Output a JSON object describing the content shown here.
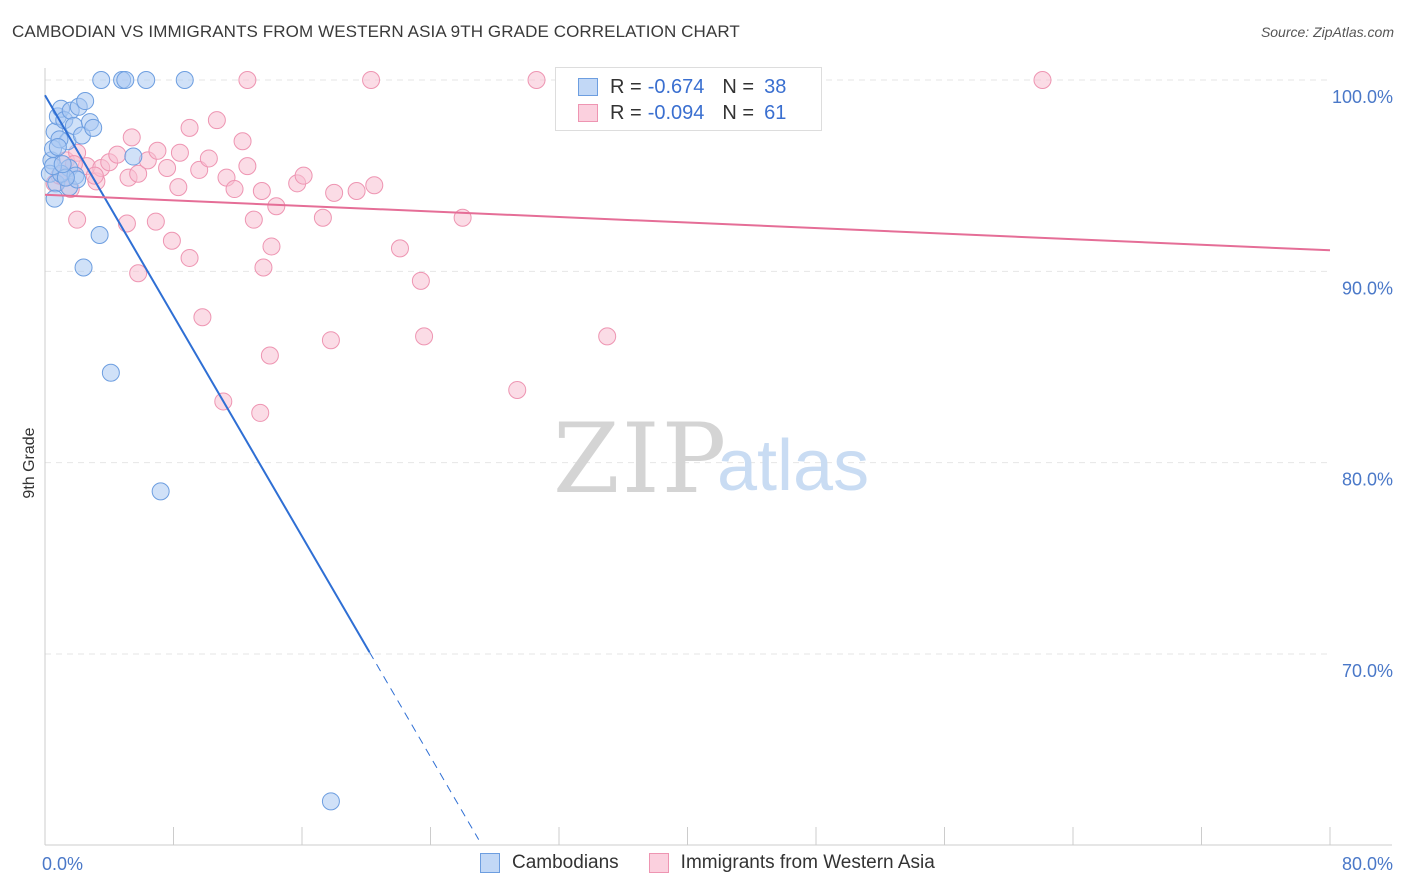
{
  "header": {
    "title": "CAMBODIAN VS IMMIGRANTS FROM WESTERN ASIA 9TH GRADE CORRELATION CHART",
    "source": "Source: ZipAtlas.com"
  },
  "watermark": {
    "zip": "ZIP",
    "atlas": "atlas"
  },
  "legend": {
    "series1": {
      "r_label": "R =",
      "r_value": "-0.674",
      "n_label": "N =",
      "n_value": "38"
    },
    "series2": {
      "r_label": "R =",
      "r_value": "-0.094",
      "n_label": "N =",
      "n_value": "61"
    }
  },
  "bottom_legend": {
    "item1": "Cambodians",
    "item2": "Immigrants from Western Asia"
  },
  "colors": {
    "blue_fill": "#a9c8f2",
    "blue_stroke": "#6d9ee0",
    "blue_line": "#2f6fd4",
    "pink_fill": "#f8c0d2",
    "pink_stroke": "#ee95b2",
    "pink_line": "#e56e97",
    "grid": "#e6e6e6",
    "axis_text": "#4a78c8"
  },
  "chart_data": {
    "type": "scatter",
    "title": "CAMBODIAN VS IMMIGRANTS FROM WESTERN ASIA 9TH GRADE CORRELATION CHART",
    "xlabel": "",
    "ylabel": "9th Grade",
    "xlim": [
      0,
      80
    ],
    "ylim": [
      60,
      101.5
    ],
    "x_tick_labels": [
      "0.0%",
      "80.0%"
    ],
    "y_ticks": [
      {
        "value": 100,
        "label": "100.0%"
      },
      {
        "value": 90,
        "label": "90.0%"
      },
      {
        "value": 80,
        "label": "80.0%"
      },
      {
        "value": 70,
        "label": "70.0%"
      }
    ],
    "series": [
      {
        "name": "Cambodians",
        "r": -0.674,
        "n": 38,
        "trend": {
          "x0": 0,
          "y0": 99.2,
          "x1": 20.2,
          "y1": 70.1,
          "dash_to_x": 27,
          "dash_to_y": 60.3
        },
        "points": [
          [
            0.4,
            95.8
          ],
          [
            0.5,
            96.4
          ],
          [
            0.6,
            97.3
          ],
          [
            0.8,
            98.1
          ],
          [
            1.0,
            98.5
          ],
          [
            1.2,
            97.9
          ],
          [
            0.3,
            95.1
          ],
          [
            0.7,
            94.6
          ],
          [
            1.4,
            96.8
          ],
          [
            1.5,
            95.4
          ],
          [
            1.6,
            98.4
          ],
          [
            1.8,
            97.6
          ],
          [
            2.1,
            98.6
          ],
          [
            2.3,
            97.1
          ],
          [
            2.5,
            98.9
          ],
          [
            2.8,
            97.8
          ],
          [
            3.0,
            97.5
          ],
          [
            4.8,
            100.0
          ],
          [
            3.5,
            100.0
          ],
          [
            5.0,
            100.0
          ],
          [
            6.3,
            100.0
          ],
          [
            8.7,
            100.0
          ],
          [
            5.5,
            96.0
          ],
          [
            1.5,
            94.4
          ],
          [
            1.0,
            95.1
          ],
          [
            1.9,
            95.0
          ],
          [
            2.0,
            94.8
          ],
          [
            0.6,
            93.8
          ],
          [
            3.4,
            91.9
          ],
          [
            2.4,
            90.2
          ],
          [
            4.1,
            84.7
          ],
          [
            7.2,
            78.5
          ],
          [
            17.8,
            62.3
          ],
          [
            0.9,
            96.9
          ],
          [
            0.5,
            95.5
          ],
          [
            0.8,
            96.5
          ],
          [
            1.3,
            94.9
          ],
          [
            1.1,
            95.6
          ]
        ]
      },
      {
        "name": "Immigrants from Western Asia",
        "r": -0.094,
        "n": 61,
        "trend": {
          "x0": 0,
          "y0": 94.0,
          "x1": 80,
          "y1": 91.1
        },
        "points": [
          [
            0.6,
            94.6
          ],
          [
            0.9,
            95.0
          ],
          [
            1.3,
            95.8
          ],
          [
            1.6,
            94.3
          ],
          [
            2.0,
            96.2
          ],
          [
            2.6,
            95.5
          ],
          [
            3.2,
            94.7
          ],
          [
            3.5,
            95.4
          ],
          [
            4.0,
            95.7
          ],
          [
            4.5,
            96.1
          ],
          [
            5.2,
            94.9
          ],
          [
            5.8,
            95.1
          ],
          [
            6.4,
            95.8
          ],
          [
            7.0,
            96.3
          ],
          [
            7.6,
            95.4
          ],
          [
            8.3,
            94.4
          ],
          [
            9.0,
            97.5
          ],
          [
            9.6,
            95.3
          ],
          [
            10.2,
            95.9
          ],
          [
            10.7,
            97.9
          ],
          [
            11.3,
            94.9
          ],
          [
            11.8,
            94.3
          ],
          [
            12.3,
            96.8
          ],
          [
            12.6,
            95.5
          ],
          [
            13.0,
            92.7
          ],
          [
            13.5,
            94.2
          ],
          [
            14.4,
            93.4
          ],
          [
            15.7,
            94.6
          ],
          [
            16.1,
            95.0
          ],
          [
            17.3,
            92.8
          ],
          [
            18.0,
            94.1
          ],
          [
            19.4,
            94.2
          ],
          [
            20.5,
            94.5
          ],
          [
            22.1,
            91.2
          ],
          [
            23.4,
            89.5
          ],
          [
            26.0,
            92.8
          ],
          [
            5.4,
            97.0
          ],
          [
            6.9,
            92.6
          ],
          [
            7.9,
            91.6
          ],
          [
            8.4,
            96.2
          ],
          [
            9.8,
            87.6
          ],
          [
            11.1,
            83.2
          ],
          [
            13.6,
            90.2
          ],
          [
            14.1,
            91.3
          ],
          [
            14.0,
            85.6
          ],
          [
            13.4,
            82.6
          ],
          [
            17.8,
            86.4
          ],
          [
            23.6,
            86.6
          ],
          [
            29.4,
            83.8
          ],
          [
            35.0,
            86.6
          ],
          [
            30.6,
            100.0
          ],
          [
            12.6,
            100.0
          ],
          [
            20.3,
            100.0
          ],
          [
            62.1,
            100.0
          ],
          [
            9.0,
            90.7
          ],
          [
            5.8,
            89.9
          ],
          [
            5.1,
            92.5
          ],
          [
            2.0,
            92.7
          ],
          [
            1.2,
            94.9
          ],
          [
            3.1,
            95.0
          ],
          [
            1.8,
            95.6
          ]
        ]
      }
    ]
  }
}
